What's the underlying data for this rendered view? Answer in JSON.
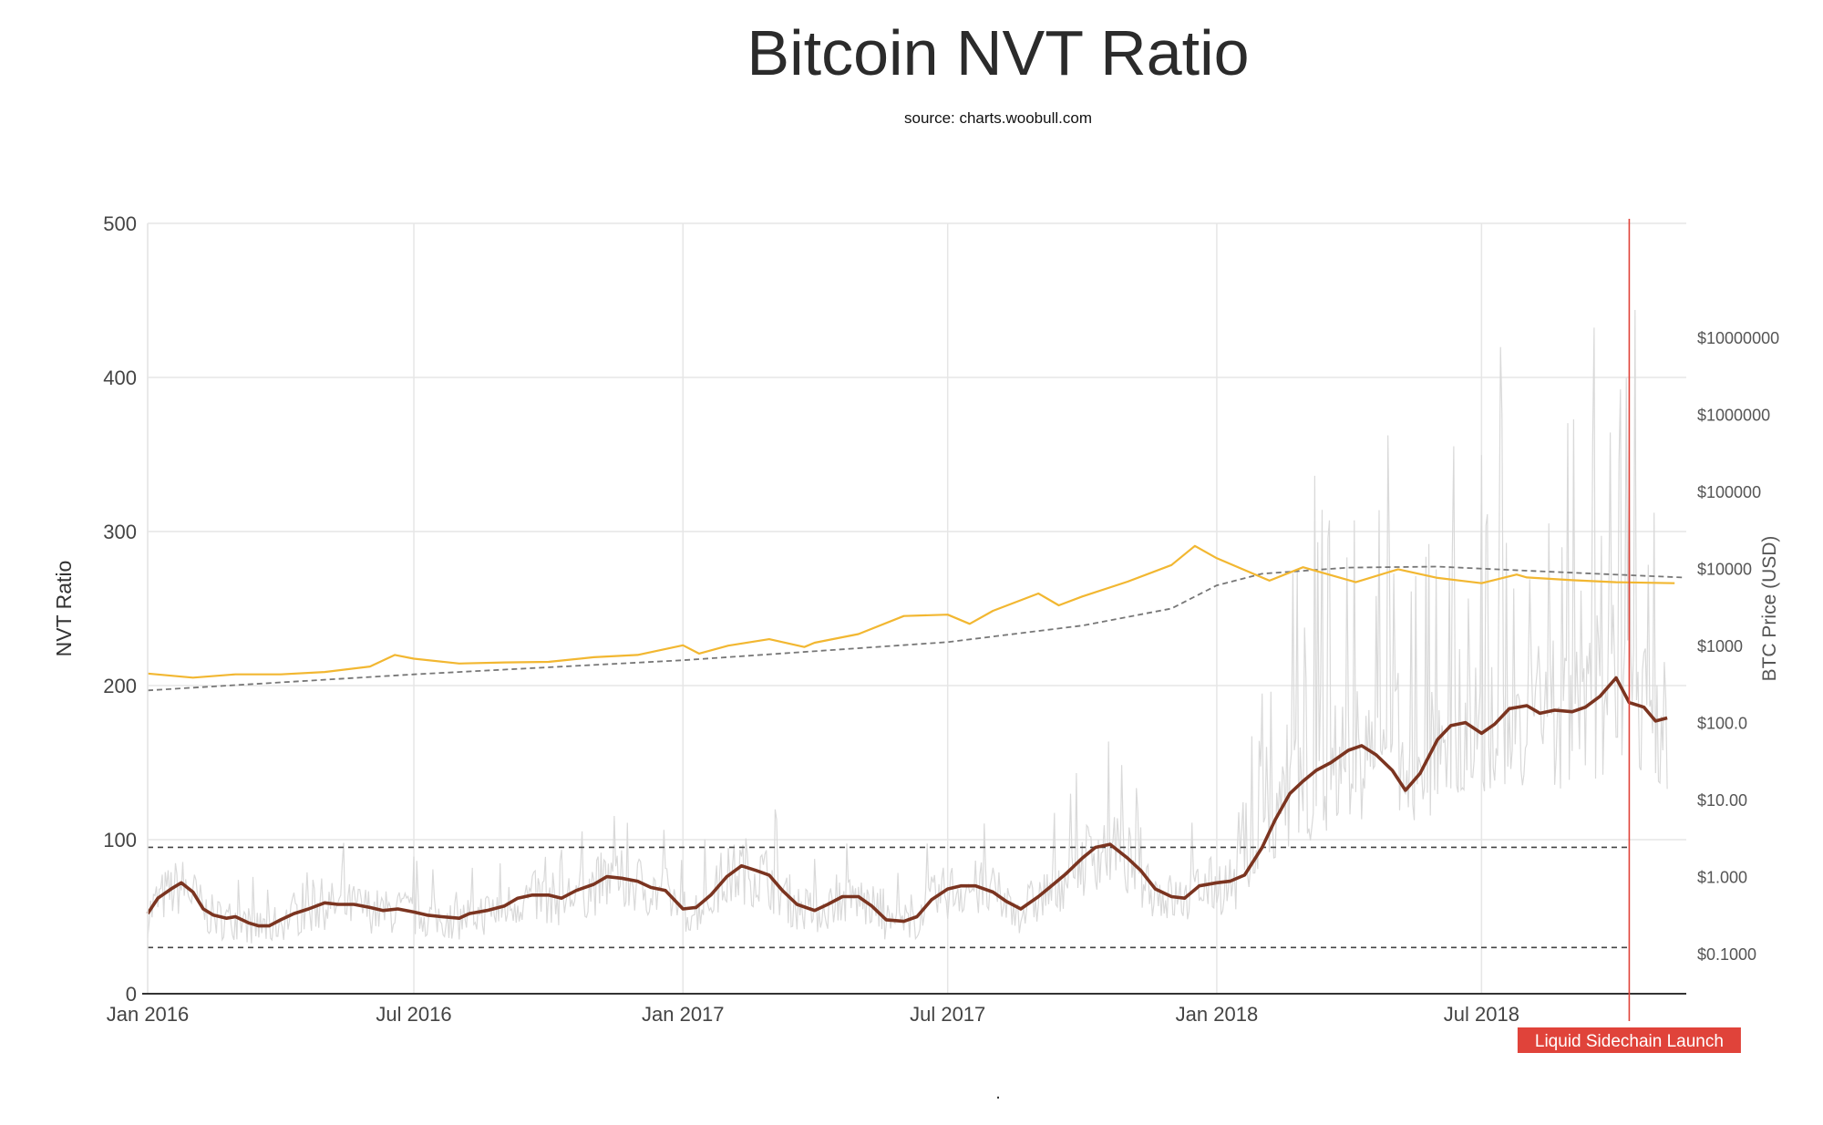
{
  "title": "Bitcoin NVT Ratio",
  "subtitle": "source: charts.woobull.com",
  "footer_mark": ".",
  "colors": {
    "nvt_ratio": "#7b3420",
    "nvt_daily": "#d9d9d9",
    "price": "#f2b731",
    "price_trend": "#777777",
    "launch_line": "#e0433a",
    "threshold": "#444444",
    "grid": "#e6e6e6",
    "axis": "#333333"
  },
  "chart_data": {
    "type": "line",
    "title": "Bitcoin NVT Ratio",
    "subtitle": "source: charts.woobull.com",
    "xlabel": "",
    "ylabel": "NVT Ratio",
    "y2label": "BTC Price (USD)",
    "x_range": [
      "2016-01-01",
      "2018-11-18"
    ],
    "x_ticks": [
      {
        "date": "2016-01-01",
        "label": "Jan 2016"
      },
      {
        "date": "2016-07-01",
        "label": "Jul 2016"
      },
      {
        "date": "2017-01-01",
        "label": "Jan 2017"
      },
      {
        "date": "2017-07-01",
        "label": "Jul 2017"
      },
      {
        "date": "2018-01-01",
        "label": "Jan 2018"
      },
      {
        "date": "2018-07-01",
        "label": "Jul 2018"
      }
    ],
    "ylim": [
      0,
      500
    ],
    "y_ticks": [
      0,
      100,
      200,
      300,
      400,
      500
    ],
    "y2_scale": "log",
    "y2lim": [
      0.03,
      300000000
    ],
    "y2_ticks": [
      {
        "value": 0.1,
        "label": "$0.1000"
      },
      {
        "value": 1,
        "label": "$1.000"
      },
      {
        "value": 10,
        "label": "$10.00"
      },
      {
        "value": 100,
        "label": "$100.0"
      },
      {
        "value": 1000,
        "label": "$1000"
      },
      {
        "value": 10000,
        "label": "$10000"
      },
      {
        "value": 100000,
        "label": "$100000"
      },
      {
        "value": 1000000,
        "label": "$1000000"
      },
      {
        "value": 10000000,
        "label": "$10000000"
      }
    ],
    "grid": true,
    "thresholds": [
      95,
      30
    ],
    "annotations": [
      {
        "date": "2018-10-10",
        "label": "Liquid Sidechain Launch"
      }
    ],
    "series": [
      {
        "name": "",
        "role": "nvt_ratio",
        "axis": "left",
        "points": [
          [
            "2016-01-01",
            52
          ],
          [
            "2016-01-08",
            62
          ],
          [
            "2016-01-17",
            68
          ],
          [
            "2016-01-24",
            72
          ],
          [
            "2016-02-01",
            66
          ],
          [
            "2016-02-08",
            55
          ],
          [
            "2016-02-15",
            51
          ],
          [
            "2016-02-24",
            49
          ],
          [
            "2016-03-01",
            50
          ],
          [
            "2016-03-10",
            46
          ],
          [
            "2016-03-17",
            44
          ],
          [
            "2016-03-24",
            44
          ],
          [
            "2016-04-01",
            48
          ],
          [
            "2016-04-10",
            52
          ],
          [
            "2016-04-20",
            55
          ],
          [
            "2016-05-01",
            59
          ],
          [
            "2016-05-10",
            58
          ],
          [
            "2016-05-21",
            58
          ],
          [
            "2016-06-01",
            56
          ],
          [
            "2016-06-10",
            54
          ],
          [
            "2016-06-20",
            55
          ],
          [
            "2016-07-01",
            53
          ],
          [
            "2016-07-10",
            51
          ],
          [
            "2016-07-20",
            50
          ],
          [
            "2016-08-01",
            49
          ],
          [
            "2016-08-08",
            52
          ],
          [
            "2016-08-20",
            54
          ],
          [
            "2016-09-01",
            57
          ],
          [
            "2016-09-10",
            62
          ],
          [
            "2016-09-20",
            64
          ],
          [
            "2016-10-01",
            64
          ],
          [
            "2016-10-10",
            62
          ],
          [
            "2016-10-20",
            67
          ],
          [
            "2016-11-01",
            71
          ],
          [
            "2016-11-10",
            76
          ],
          [
            "2016-11-20",
            75
          ],
          [
            "2016-12-01",
            73
          ],
          [
            "2016-12-10",
            69
          ],
          [
            "2016-12-20",
            67
          ],
          [
            "2017-01-01",
            55
          ],
          [
            "2017-01-10",
            56
          ],
          [
            "2017-01-20",
            64
          ],
          [
            "2017-01-31",
            76
          ],
          [
            "2017-02-10",
            83
          ],
          [
            "2017-02-20",
            80
          ],
          [
            "2017-03-01",
            77
          ],
          [
            "2017-03-10",
            67
          ],
          [
            "2017-03-20",
            58
          ],
          [
            "2017-04-01",
            54
          ],
          [
            "2017-04-10",
            58
          ],
          [
            "2017-04-20",
            63
          ],
          [
            "2017-05-01",
            63
          ],
          [
            "2017-05-10",
            57
          ],
          [
            "2017-05-20",
            48
          ],
          [
            "2017-06-01",
            47
          ],
          [
            "2017-06-10",
            50
          ],
          [
            "2017-06-20",
            61
          ],
          [
            "2017-07-01",
            68
          ],
          [
            "2017-07-10",
            70
          ],
          [
            "2017-07-20",
            70
          ],
          [
            "2017-08-01",
            66
          ],
          [
            "2017-08-10",
            60
          ],
          [
            "2017-08-20",
            55
          ],
          [
            "2017-09-01",
            63
          ],
          [
            "2017-09-10",
            70
          ],
          [
            "2017-09-20",
            78
          ],
          [
            "2017-10-01",
            88
          ],
          [
            "2017-10-10",
            95
          ],
          [
            "2017-10-20",
            97
          ],
          [
            "2017-11-01",
            88
          ],
          [
            "2017-11-10",
            80
          ],
          [
            "2017-11-20",
            68
          ],
          [
            "2017-12-01",
            63
          ],
          [
            "2017-12-10",
            62
          ],
          [
            "2017-12-20",
            70
          ],
          [
            "2018-01-01",
            72
          ],
          [
            "2018-01-10",
            73
          ],
          [
            "2018-01-20",
            77
          ],
          [
            "2018-02-01",
            95
          ],
          [
            "2018-02-10",
            113
          ],
          [
            "2018-02-20",
            130
          ],
          [
            "2018-03-01",
            138
          ],
          [
            "2018-03-10",
            145
          ],
          [
            "2018-03-20",
            150
          ],
          [
            "2018-04-01",
            158
          ],
          [
            "2018-04-10",
            161
          ],
          [
            "2018-04-20",
            155
          ],
          [
            "2018-05-01",
            145
          ],
          [
            "2018-05-10",
            132
          ],
          [
            "2018-05-20",
            143
          ],
          [
            "2018-06-01",
            165
          ],
          [
            "2018-06-10",
            174
          ],
          [
            "2018-06-20",
            176
          ],
          [
            "2018-07-01",
            169
          ],
          [
            "2018-07-10",
            175
          ],
          [
            "2018-07-20",
            185
          ],
          [
            "2018-08-01",
            187
          ],
          [
            "2018-08-10",
            182
          ],
          [
            "2018-08-20",
            184
          ],
          [
            "2018-09-01",
            183
          ],
          [
            "2018-09-10",
            186
          ],
          [
            "2018-09-20",
            193
          ],
          [
            "2018-10-01",
            205
          ],
          [
            "2018-10-10",
            189
          ],
          [
            "2018-10-20",
            186
          ],
          [
            "2018-10-28",
            177
          ],
          [
            "2018-11-05",
            179
          ]
        ]
      },
      {
        "name": "",
        "role": "price",
        "axis": "right",
        "points": [
          [
            "2016-01-01",
            430
          ],
          [
            "2016-02-01",
            380
          ],
          [
            "2016-03-01",
            420
          ],
          [
            "2016-04-01",
            420
          ],
          [
            "2016-05-01",
            450
          ],
          [
            "2016-06-01",
            530
          ],
          [
            "2016-06-18",
            750
          ],
          [
            "2016-07-01",
            670
          ],
          [
            "2016-08-01",
            580
          ],
          [
            "2016-09-01",
            600
          ],
          [
            "2016-10-01",
            610
          ],
          [
            "2016-11-01",
            700
          ],
          [
            "2016-12-01",
            750
          ],
          [
            "2017-01-01",
            1000
          ],
          [
            "2017-01-12",
            780
          ],
          [
            "2017-02-01",
            990
          ],
          [
            "2017-03-01",
            1200
          ],
          [
            "2017-03-25",
            950
          ],
          [
            "2017-04-01",
            1080
          ],
          [
            "2017-05-01",
            1400
          ],
          [
            "2017-06-01",
            2400
          ],
          [
            "2017-07-01",
            2500
          ],
          [
            "2017-07-16",
            1900
          ],
          [
            "2017-08-01",
            2800
          ],
          [
            "2017-09-01",
            4700
          ],
          [
            "2017-09-15",
            3300
          ],
          [
            "2017-10-01",
            4300
          ],
          [
            "2017-11-01",
            6700
          ],
          [
            "2017-12-01",
            11000
          ],
          [
            "2017-12-17",
            19500
          ],
          [
            "2018-01-01",
            13500
          ],
          [
            "2018-02-06",
            6900
          ],
          [
            "2018-03-01",
            10300
          ],
          [
            "2018-04-06",
            6600
          ],
          [
            "2018-05-05",
            9700
          ],
          [
            "2018-06-01",
            7500
          ],
          [
            "2018-07-01",
            6400
          ],
          [
            "2018-07-25",
            8300
          ],
          [
            "2018-08-01",
            7600
          ],
          [
            "2018-09-01",
            7000
          ],
          [
            "2018-10-01",
            6600
          ],
          [
            "2018-11-10",
            6400
          ]
        ]
      },
      {
        "name": "",
        "role": "price_trend",
        "axis": "right",
        "points": [
          [
            "2016-01-01",
            260
          ],
          [
            "2016-07-01",
            420
          ],
          [
            "2017-01-01",
            640
          ],
          [
            "2017-07-01",
            1100
          ],
          [
            "2017-10-01",
            1800
          ],
          [
            "2017-12-01",
            3000
          ],
          [
            "2018-01-01",
            6000
          ],
          [
            "2018-02-01",
            8500
          ],
          [
            "2018-04-01",
            10200
          ],
          [
            "2018-06-01",
            10500
          ],
          [
            "2018-08-01",
            9300
          ],
          [
            "2018-11-15",
            7600
          ]
        ]
      },
      {
        "name": "",
        "role": "nvt_daily",
        "axis": "left",
        "points": []
      }
    ]
  }
}
